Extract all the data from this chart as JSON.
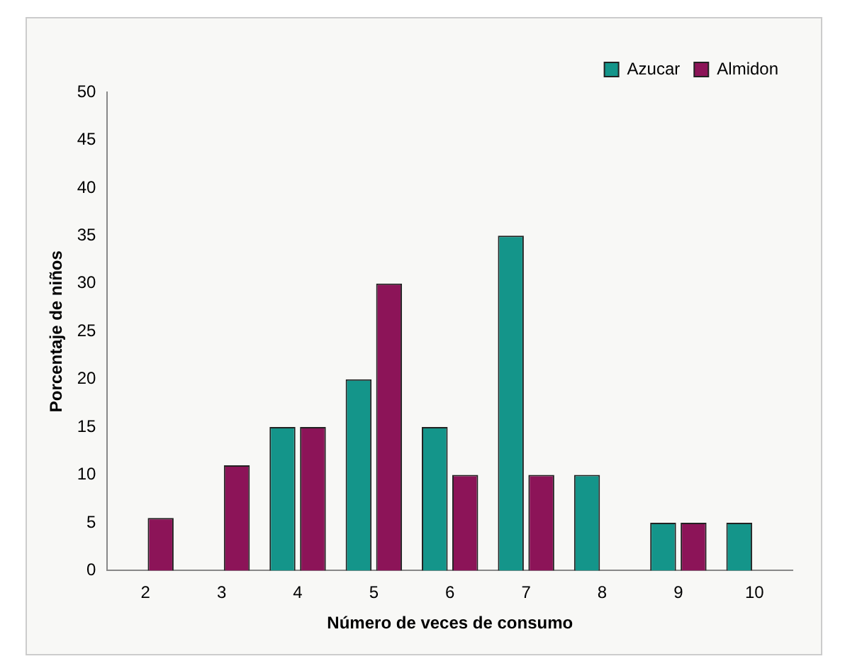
{
  "chart_data": {
    "type": "bar",
    "xlabel": "Número de veces de consumo",
    "ylabel": "Porcentaje de niños",
    "categories": [
      "2",
      "3",
      "4",
      "5",
      "6",
      "7",
      "8",
      "9",
      "10"
    ],
    "series": [
      {
        "name": "Azucar",
        "color": "#14958a",
        "values": [
          0,
          0,
          15,
          20,
          15,
          35,
          10,
          5,
          5
        ]
      },
      {
        "name": "Almidon",
        "color": "#8c1458",
        "values": [
          5.5,
          11,
          15,
          30,
          10,
          10,
          0,
          5,
          0
        ]
      }
    ],
    "ylim": [
      0,
      50
    ],
    "yticks": [
      0,
      5,
      10,
      15,
      20,
      25,
      30,
      35,
      40,
      45,
      50
    ],
    "grid": false,
    "legend": "top right"
  }
}
